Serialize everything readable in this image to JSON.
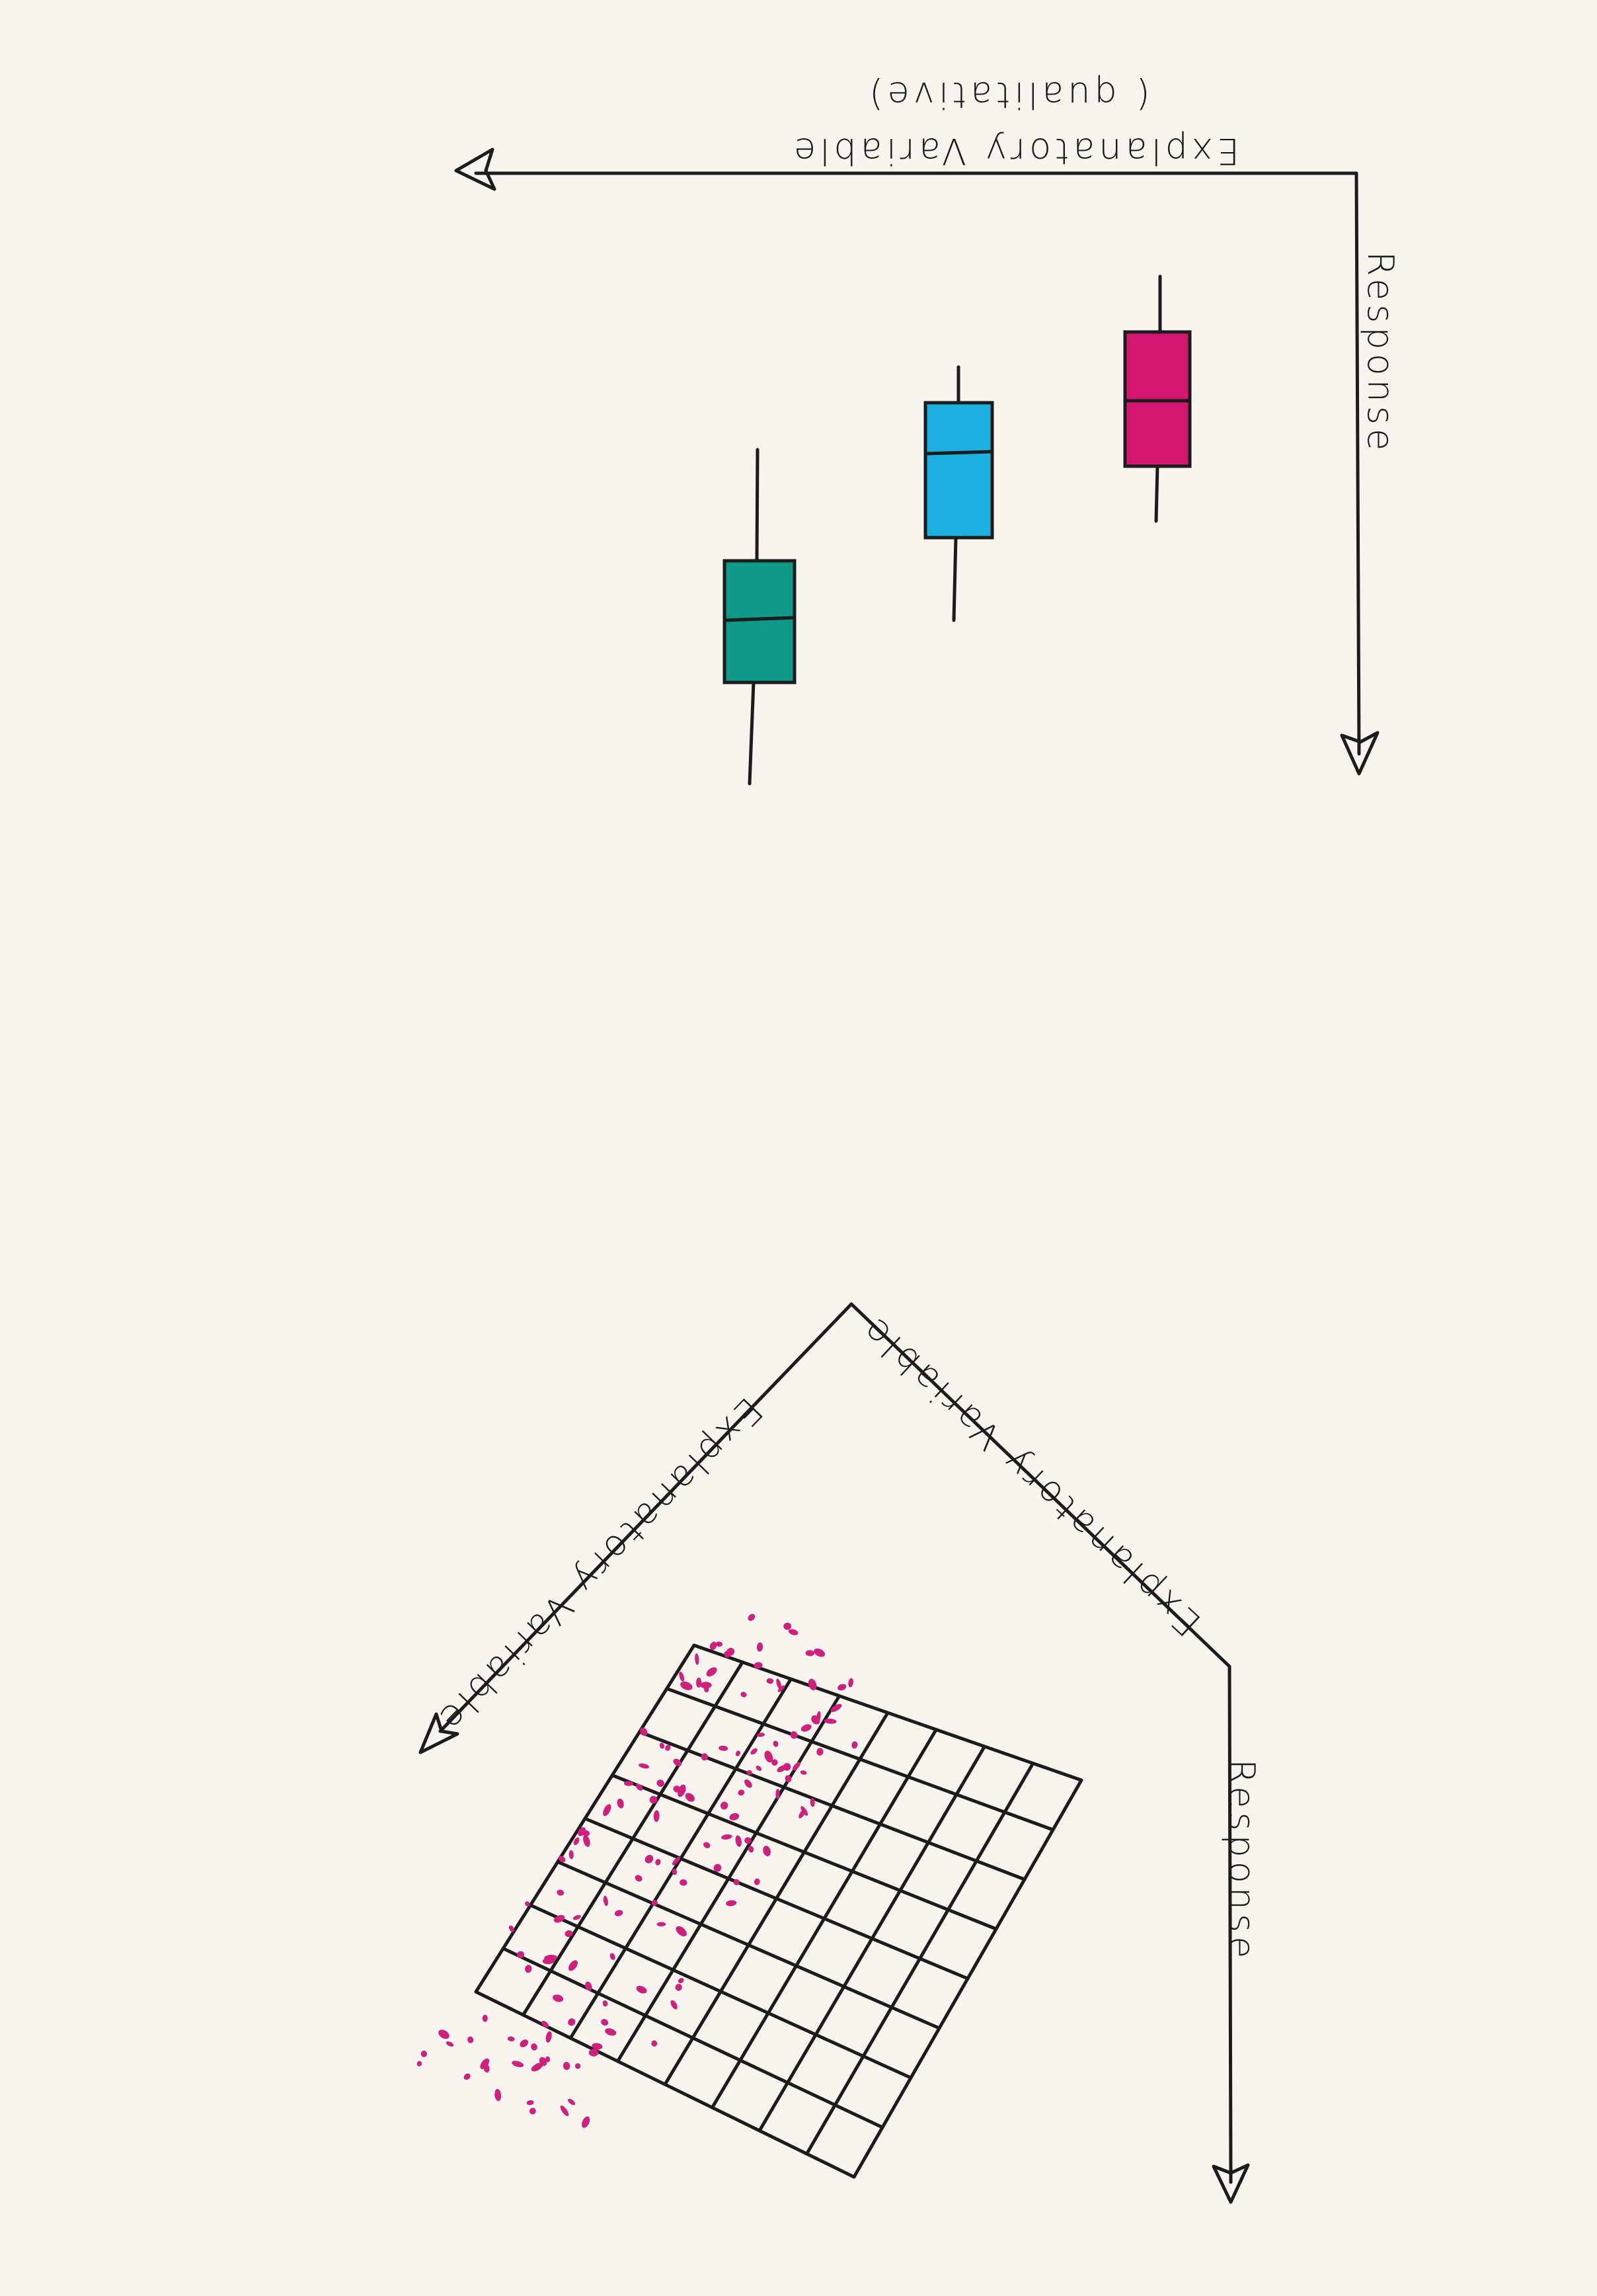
{
  "colors": {
    "paper": "#f7f4ee",
    "ink": "#1c1c1c",
    "box_teal": "#0e9a86",
    "box_cyan": "#1cb0e0",
    "box_magenta": "#d3176e",
    "dots": "#d01f7c"
  },
  "top_diagram": {
    "x_axis_label": "Explanatory   Variable",
    "x_axis_sublabel": "( qualitative)",
    "y_axis_label": "Response"
  },
  "bottom_diagram": {
    "axis_label_1": "Explanatory Variable",
    "axis_label_2": "Explanatory Variable",
    "axis_label_3": "Response"
  }
}
